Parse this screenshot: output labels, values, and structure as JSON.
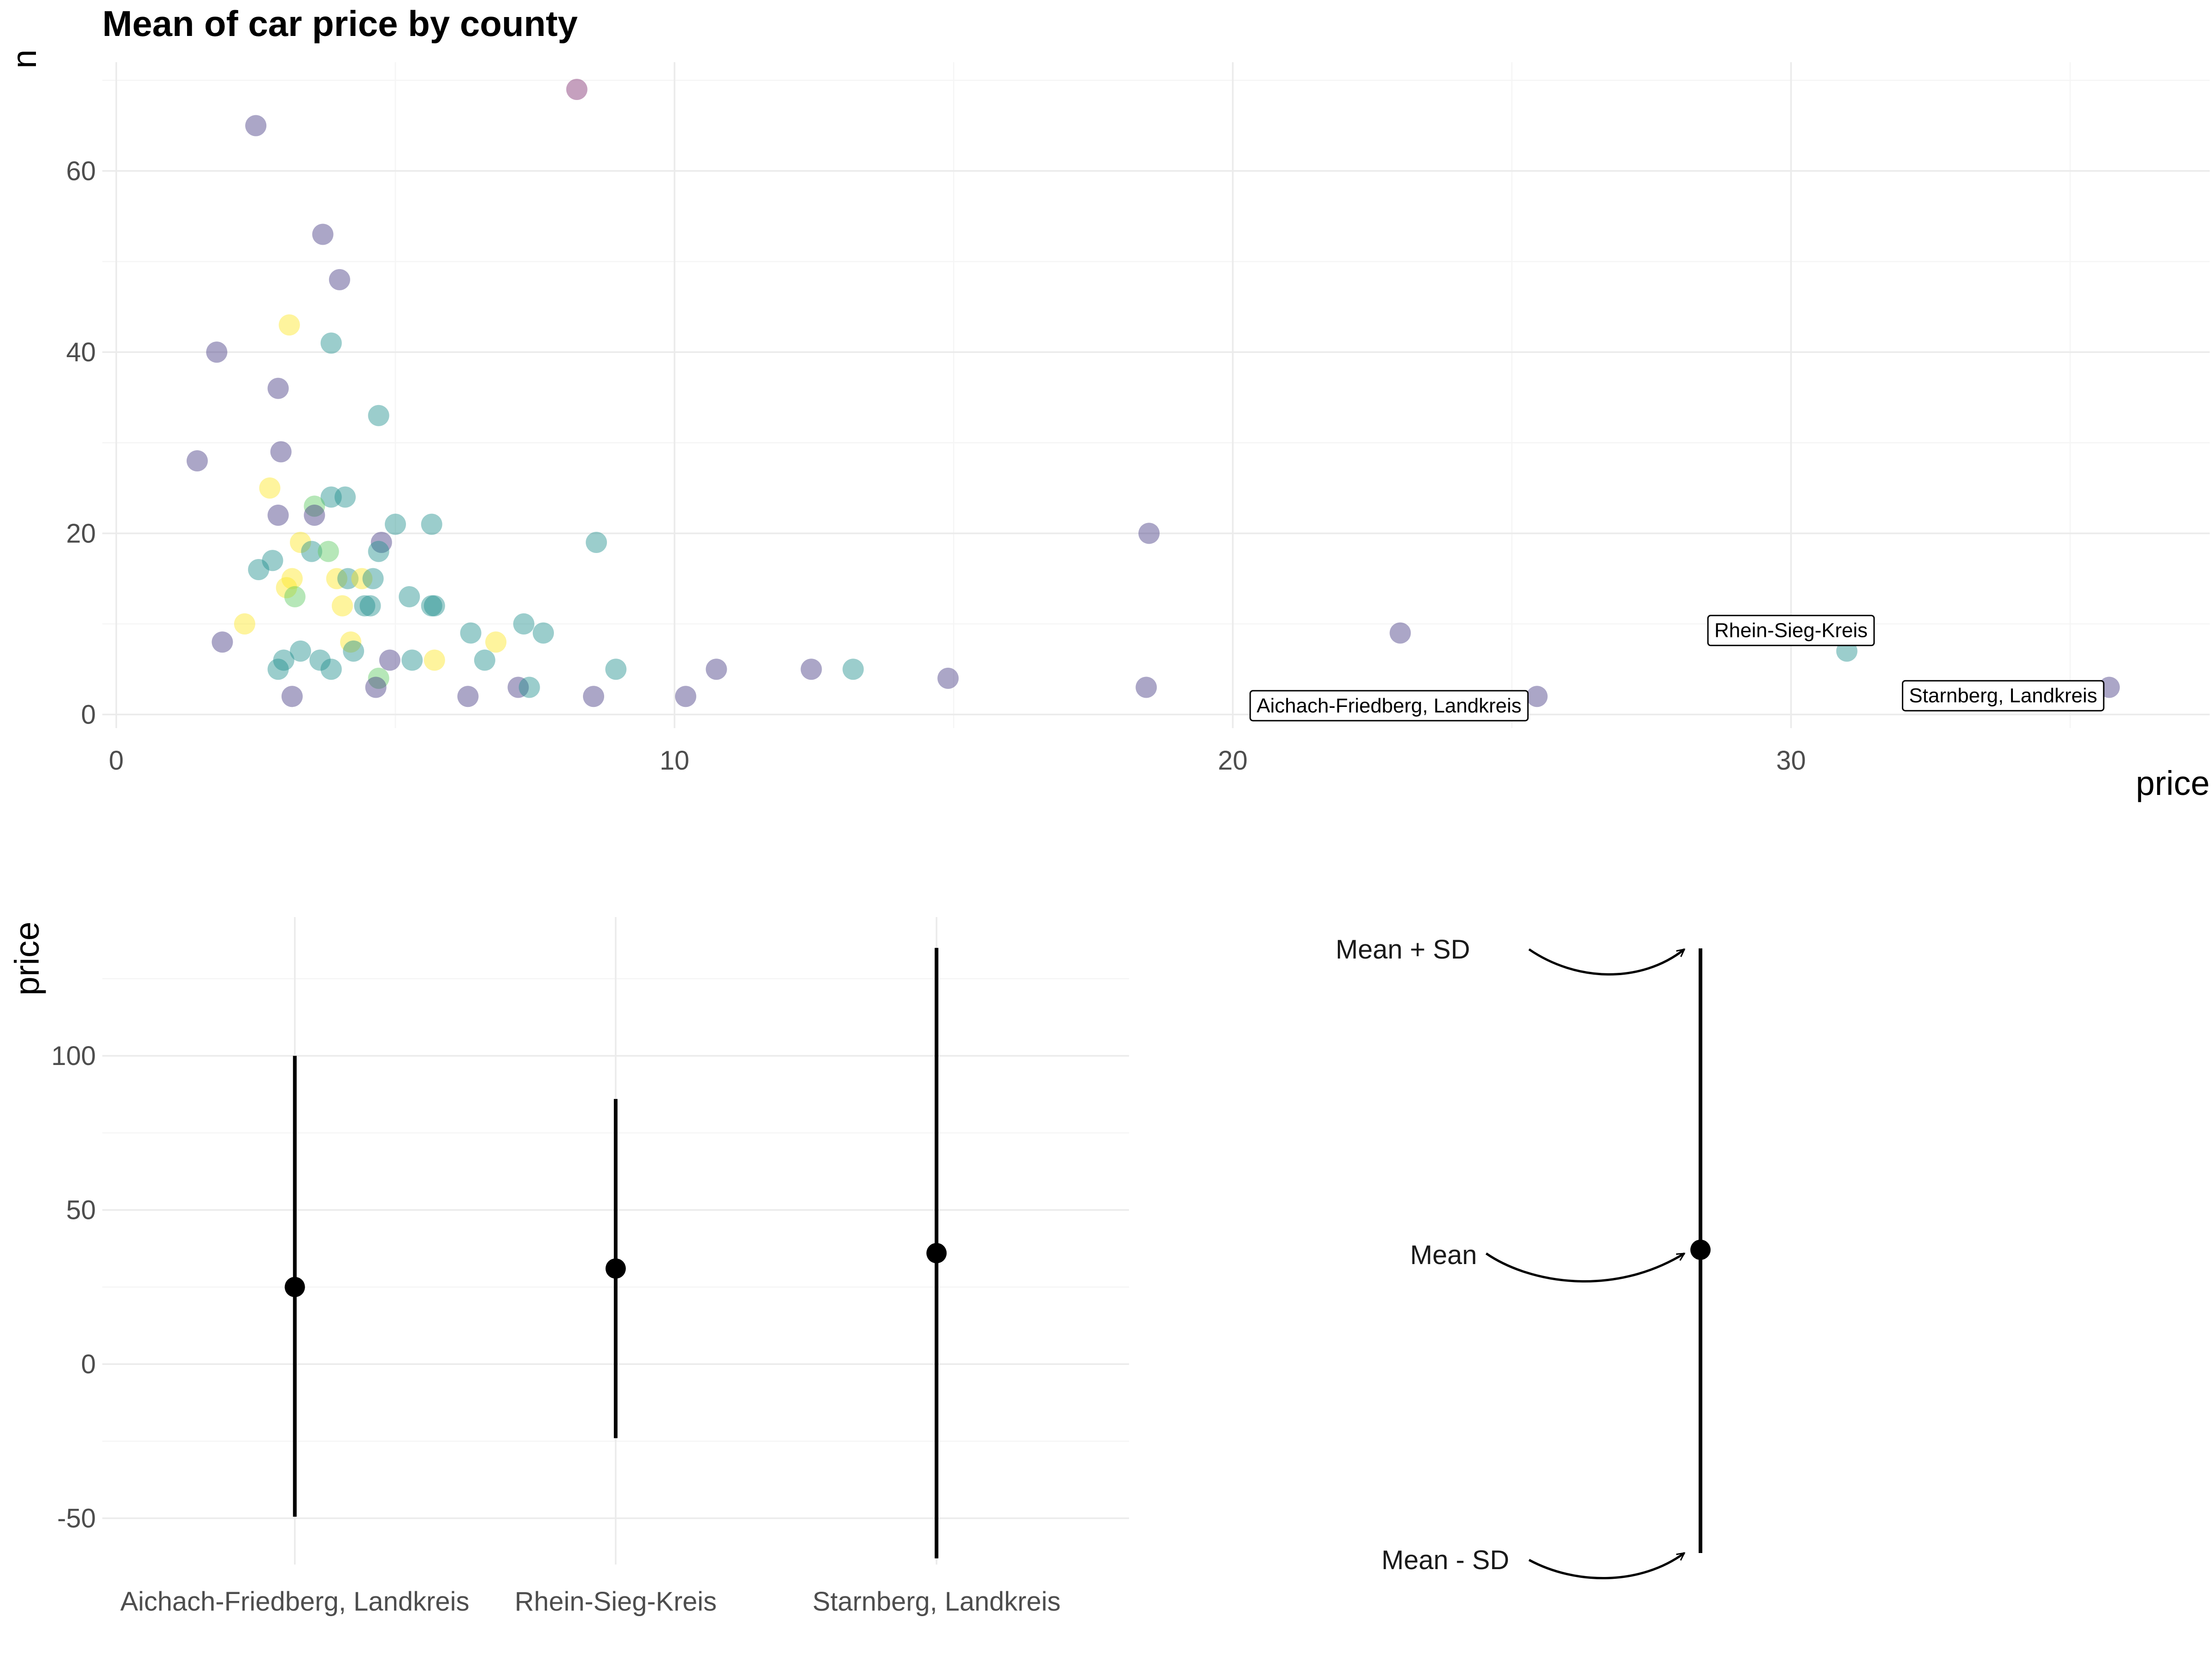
{
  "chart_data": [
    {
      "type": "scatter",
      "title": "Mean of car price by county",
      "xlabel": "price",
      "ylabel": "n",
      "xlim": [
        -0.25,
        37.5
      ],
      "ylim": [
        -1.5,
        72
      ],
      "x_ticks": [
        0,
        10,
        20,
        30
      ],
      "y_ticks": [
        0,
        20,
        40,
        60
      ],
      "grid": true,
      "legend": "none",
      "point_alpha": 0.45,
      "colors": {
        "purple": "#443a83",
        "teal": "#21908d",
        "green": "#5ec962",
        "yellow": "#fde725",
        "magenta": "#7e2d6e"
      },
      "points": [
        {
          "x": 8.25,
          "y": 69,
          "c": "magenta"
        },
        {
          "x": 2.5,
          "y": 65,
          "c": "purple"
        },
        {
          "x": 3.7,
          "y": 53,
          "c": "purple"
        },
        {
          "x": 4.0,
          "y": 48,
          "c": "purple"
        },
        {
          "x": 3.1,
          "y": 43,
          "c": "yellow"
        },
        {
          "x": 3.85,
          "y": 41,
          "c": "teal"
        },
        {
          "x": 1.8,
          "y": 40,
          "c": "purple"
        },
        {
          "x": 2.9,
          "y": 36,
          "c": "purple"
        },
        {
          "x": 4.7,
          "y": 33,
          "c": "teal"
        },
        {
          "x": 2.95,
          "y": 29,
          "c": "purple"
        },
        {
          "x": 1.45,
          "y": 28,
          "c": "purple"
        },
        {
          "x": 2.75,
          "y": 25,
          "c": "yellow"
        },
        {
          "x": 3.85,
          "y": 24,
          "c": "teal"
        },
        {
          "x": 4.1,
          "y": 24,
          "c": "teal"
        },
        {
          "x": 3.55,
          "y": 23,
          "c": "green"
        },
        {
          "x": 2.9,
          "y": 22,
          "c": "purple"
        },
        {
          "x": 3.55,
          "y": 22,
          "c": "purple"
        },
        {
          "x": 5.0,
          "y": 21,
          "c": "teal"
        },
        {
          "x": 5.65,
          "y": 21,
          "c": "teal"
        },
        {
          "x": 18.5,
          "y": 20,
          "c": "purple"
        },
        {
          "x": 3.3,
          "y": 19,
          "c": "yellow"
        },
        {
          "x": 4.75,
          "y": 19,
          "c": "purple"
        },
        {
          "x": 8.6,
          "y": 19,
          "c": "teal"
        },
        {
          "x": 3.5,
          "y": 18,
          "c": "teal"
        },
        {
          "x": 3.8,
          "y": 18,
          "c": "green"
        },
        {
          "x": 4.7,
          "y": 18,
          "c": "teal"
        },
        {
          "x": 2.8,
          "y": 17,
          "c": "teal"
        },
        {
          "x": 2.55,
          "y": 16,
          "c": "teal"
        },
        {
          "x": 3.15,
          "y": 15,
          "c": "yellow"
        },
        {
          "x": 3.95,
          "y": 15,
          "c": "yellow"
        },
        {
          "x": 4.15,
          "y": 15,
          "c": "teal"
        },
        {
          "x": 4.4,
          "y": 15,
          "c": "yellow"
        },
        {
          "x": 4.6,
          "y": 15,
          "c": "teal"
        },
        {
          "x": 3.05,
          "y": 14,
          "c": "yellow"
        },
        {
          "x": 3.2,
          "y": 13,
          "c": "green"
        },
        {
          "x": 5.25,
          "y": 13,
          "c": "teal"
        },
        {
          "x": 4.05,
          "y": 12,
          "c": "yellow"
        },
        {
          "x": 4.45,
          "y": 12,
          "c": "teal"
        },
        {
          "x": 4.55,
          "y": 12,
          "c": "teal"
        },
        {
          "x": 5.65,
          "y": 12,
          "c": "teal"
        },
        {
          "x": 5.7,
          "y": 12,
          "c": "teal"
        },
        {
          "x": 2.3,
          "y": 10,
          "c": "yellow"
        },
        {
          "x": 7.3,
          "y": 10,
          "c": "teal"
        },
        {
          "x": 6.35,
          "y": 9,
          "c": "teal"
        },
        {
          "x": 7.65,
          "y": 9,
          "c": "teal"
        },
        {
          "x": 23.0,
          "y": 9,
          "c": "purple"
        },
        {
          "x": 1.9,
          "y": 8,
          "c": "purple"
        },
        {
          "x": 4.2,
          "y": 8,
          "c": "yellow"
        },
        {
          "x": 6.8,
          "y": 8,
          "c": "yellow"
        },
        {
          "x": 3.3,
          "y": 7,
          "c": "teal"
        },
        {
          "x": 4.25,
          "y": 7,
          "c": "teal"
        },
        {
          "x": 31.0,
          "y": 7,
          "c": "teal"
        },
        {
          "x": 3.0,
          "y": 6,
          "c": "teal"
        },
        {
          "x": 3.65,
          "y": 6,
          "c": "teal"
        },
        {
          "x": 4.9,
          "y": 6,
          "c": "purple"
        },
        {
          "x": 5.3,
          "y": 6,
          "c": "teal"
        },
        {
          "x": 5.7,
          "y": 6,
          "c": "yellow"
        },
        {
          "x": 6.6,
          "y": 6,
          "c": "teal"
        },
        {
          "x": 2.9,
          "y": 5,
          "c": "teal"
        },
        {
          "x": 3.85,
          "y": 5,
          "c": "teal"
        },
        {
          "x": 8.95,
          "y": 5,
          "c": "teal"
        },
        {
          "x": 10.75,
          "y": 5,
          "c": "purple"
        },
        {
          "x": 12.45,
          "y": 5,
          "c": "purple"
        },
        {
          "x": 13.2,
          "y": 5,
          "c": "teal"
        },
        {
          "x": 4.7,
          "y": 4,
          "c": "green"
        },
        {
          "x": 14.9,
          "y": 4,
          "c": "purple"
        },
        {
          "x": 4.65,
          "y": 3,
          "c": "purple"
        },
        {
          "x": 7.2,
          "y": 3,
          "c": "purple"
        },
        {
          "x": 7.4,
          "y": 3,
          "c": "teal"
        },
        {
          "x": 18.45,
          "y": 3,
          "c": "purple"
        },
        {
          "x": 35.7,
          "y": 3,
          "c": "purple"
        },
        {
          "x": 3.15,
          "y": 2,
          "c": "purple"
        },
        {
          "x": 6.3,
          "y": 2,
          "c": "purple"
        },
        {
          "x": 8.55,
          "y": 2,
          "c": "purple"
        },
        {
          "x": 10.2,
          "y": 2,
          "c": "purple"
        },
        {
          "x": 25.45,
          "y": 2,
          "c": "purple"
        }
      ],
      "annotations": [
        {
          "text": "Rhein-Sieg-Kreis",
          "x": 30.0,
          "y": 9.3
        },
        {
          "text": "Starnberg, Landkreis",
          "x": 33.8,
          "y": 2.1
        },
        {
          "text": "Aichach-Friedberg, Landkreis",
          "x": 22.8,
          "y": 1.0
        }
      ]
    },
    {
      "type": "errorbar",
      "xlabel": "",
      "ylabel": "price",
      "ylim": [
        -65,
        145
      ],
      "y_ticks": [
        -50,
        0,
        50,
        100
      ],
      "grid": true,
      "categories": [
        "Aichach-Friedberg, Landkreis",
        "Rhein-Sieg-Kreis",
        "Starnberg, Landkreis"
      ],
      "mean": [
        25,
        31,
        36
      ],
      "lower": [
        -49.5,
        -24,
        -63
      ],
      "upper": [
        100,
        86,
        135
      ]
    },
    {
      "type": "annotation-legend",
      "labels": [
        "Mean + SD",
        "Mean",
        "Mean - SD"
      ]
    }
  ]
}
